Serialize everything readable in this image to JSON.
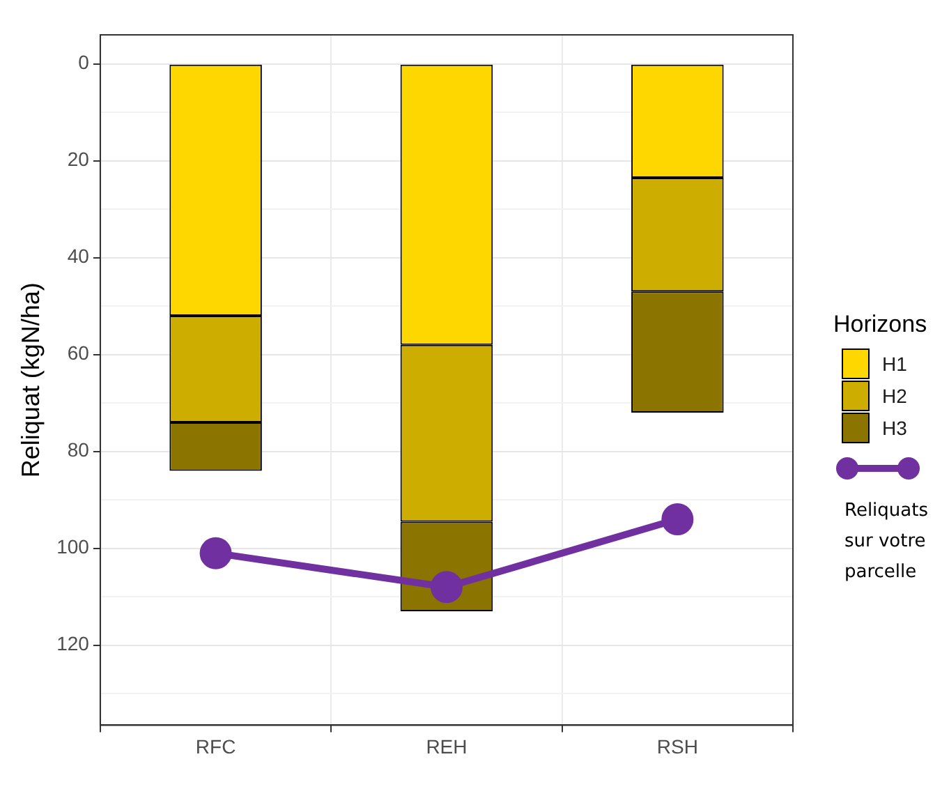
{
  "chart_data": {
    "type": "bar",
    "stacked": true,
    "ylabel": "Reliquat (kgN/ha)",
    "legend_title": "Horizons",
    "legend": "right",
    "grid": true,
    "categories": [
      "RFC",
      "REH",
      "RSH"
    ],
    "ylim": [
      136.5,
      -6
    ],
    "yticks": [
      0,
      {
        "value": 10,
        "label": null
      },
      20,
      {
        "value": 30,
        "label": null
      },
      40,
      {
        "value": 50,
        "label": null
      },
      60,
      {
        "value": 70,
        "label": null
      },
      80,
      {
        "value": 90,
        "label": null
      },
      100,
      {
        "value": 110,
        "label": null
      },
      120,
      {
        "value": 130,
        "label": null
      }
    ],
    "series": [
      {
        "name": "H1",
        "color": "#ffd700",
        "values": [
          52,
          58,
          23.5
        ]
      },
      {
        "name": "H2",
        "color": "#cdad00",
        "values": [
          22,
          36.5,
          23.5
        ]
      },
      {
        "name": "H3",
        "color": "#8b7500",
        "values": [
          10,
          18.5,
          25
        ]
      },
      {
        "name": "Reliquats sur votre parcelle",
        "type": "line",
        "color": "#7030a0",
        "marker": "circle",
        "values": [
          101,
          108,
          94
        ]
      }
    ]
  }
}
